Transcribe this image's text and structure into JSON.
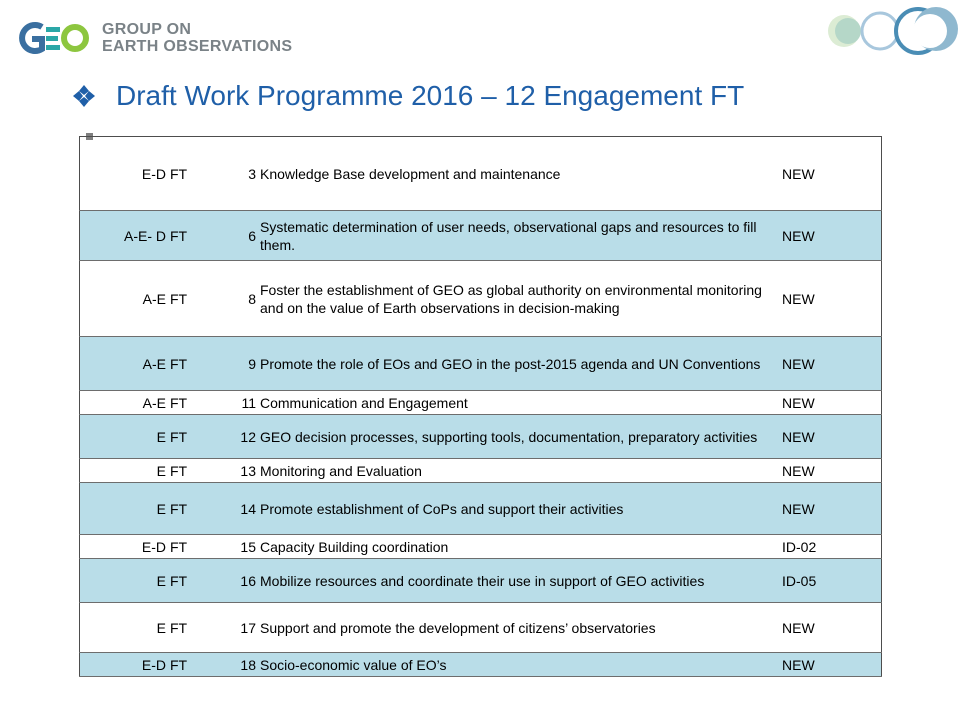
{
  "header": {
    "logo_line1": "GROUP ON",
    "logo_line2": "EARTH OBSERVATIONS",
    "title": "Draft Work Programme 2016 – 12 Engagement FT"
  },
  "colors": {
    "title": "#1f5fa8",
    "row_highlight": "#b9dde8",
    "logo_blue": "#3a6fa0",
    "logo_teal": "#2aa7a7",
    "logo_green": "#8dc63f"
  },
  "rows": [
    {
      "area": "E-D",
      "type": "FT",
      "num": "3",
      "task": "Knowledge Base development and maintenance",
      "ref": "NEW",
      "highlight": false
    },
    {
      "area": "A-E- D",
      "type": "FT",
      "num": "6",
      "task": "Systematic determination of user needs, observational gaps and resources to fill them.",
      "ref": "NEW",
      "highlight": true
    },
    {
      "area": "A-E",
      "type": "FT",
      "num": "8",
      "task": "Foster the establishment of GEO as global authority on environmental monitoring and on the value of Earth observations in decision-making",
      "ref": "NEW",
      "highlight": false
    },
    {
      "area": "A-E",
      "type": "FT",
      "num": "9",
      "task": "Promote the role of EOs and GEO in the post-2015 agenda and UN Conventions",
      "ref": "NEW",
      "highlight": true
    },
    {
      "area": "A-E",
      "type": "FT",
      "num": "11",
      "task": "Communication and Engagement",
      "ref": "NEW",
      "highlight": false
    },
    {
      "area": "E",
      "type": "FT",
      "num": "12",
      "task": "GEO decision processes, supporting tools, documentation, preparatory activities",
      "ref": "NEW",
      "highlight": true
    },
    {
      "area": "E",
      "type": "FT",
      "num": "13",
      "task": "Monitoring and Evaluation",
      "ref": "NEW",
      "highlight": false
    },
    {
      "area": "E",
      "type": "FT",
      "num": "14",
      "task": "Promote establishment of CoPs and support their activities",
      "ref": "NEW",
      "highlight": true
    },
    {
      "area": "E-D",
      "type": "FT",
      "num": "15",
      "task": "Capacity Building coordination",
      "ref": "ID-02",
      "highlight": false
    },
    {
      "area": "E",
      "type": "FT",
      "num": "16",
      "task": "Mobilize resources and coordinate their use in support of GEO activities",
      "ref": "ID-05",
      "highlight": true
    },
    {
      "area": "E",
      "type": "FT",
      "num": "17",
      "task": "Support and promote the development of citizens’ observatories",
      "ref": "NEW",
      "highlight": false
    },
    {
      "area": "E-D",
      "type": "FT",
      "num": "18",
      "task": "Socio-economic value of EO’s",
      "ref": "NEW",
      "highlight": true
    }
  ]
}
